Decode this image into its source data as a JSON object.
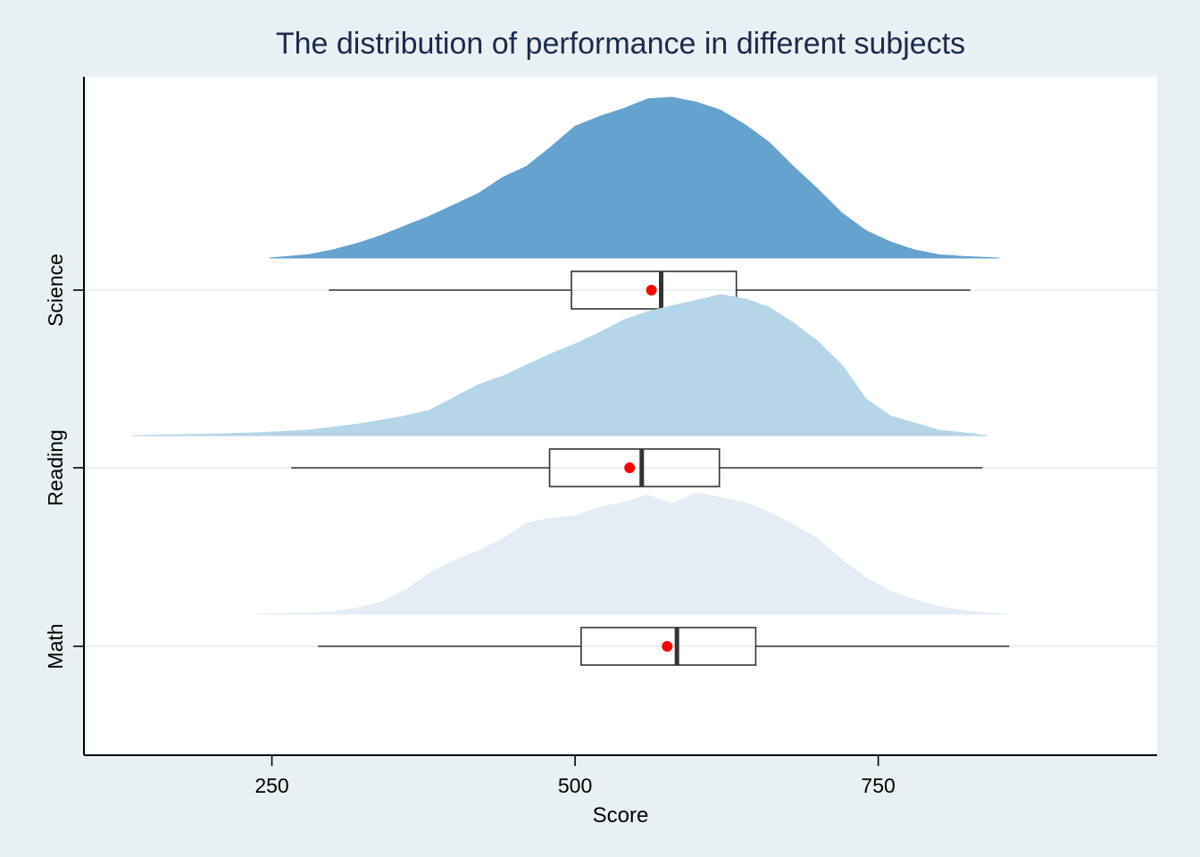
{
  "chart_data": {
    "type": "raincloud",
    "title": "The distribution of performance in different subjects",
    "xlabel": "Score",
    "ylabel": "",
    "xlim": [
      95,
      980
    ],
    "xticks": [
      250,
      500,
      750
    ],
    "grid": "horizontal",
    "legend": "none",
    "colors": {
      "background": "#e9f0f3",
      "plot_background": "#ffffff",
      "mean_marker": "#ff0000",
      "box_stroke": "#333333",
      "gridline": "#e6ecef"
    },
    "series": [
      {
        "name": "Math",
        "color": "#e4edf6",
        "density_x": [
          236,
          260,
          280,
          300,
          320,
          340,
          360,
          380,
          400,
          420,
          440,
          460,
          480,
          500,
          520,
          540,
          560,
          580,
          600,
          620,
          640,
          660,
          680,
          700,
          720,
          740,
          760,
          780,
          800,
          820,
          840,
          858
        ],
        "density_y": [
          0.0,
          0.005,
          0.01,
          0.02,
          0.05,
          0.1,
          0.2,
          0.34,
          0.44,
          0.52,
          0.62,
          0.75,
          0.79,
          0.81,
          0.88,
          0.92,
          0.98,
          0.91,
          1.0,
          0.96,
          0.92,
          0.84,
          0.74,
          0.62,
          0.45,
          0.3,
          0.19,
          0.12,
          0.06,
          0.03,
          0.01,
          0.0
        ],
        "box": {
          "whisker_low": 288,
          "q1": 505,
          "median": 584,
          "q3": 649,
          "whisker_high": 858,
          "mean": 576
        }
      },
      {
        "name": "Reading",
        "color": "#b5d6e9",
        "density_x": [
          135,
          160,
          200,
          240,
          280,
          300,
          320,
          340,
          360,
          380,
          400,
          420,
          440,
          460,
          480,
          500,
          520,
          540,
          560,
          580,
          600,
          620,
          640,
          660,
          680,
          700,
          720,
          740,
          760,
          780,
          800,
          840
        ],
        "density_y": [
          0.0,
          0.005,
          0.01,
          0.02,
          0.04,
          0.06,
          0.08,
          0.11,
          0.14,
          0.18,
          0.27,
          0.36,
          0.42,
          0.5,
          0.58,
          0.65,
          0.73,
          0.82,
          0.88,
          0.92,
          0.96,
          1.0,
          0.97,
          0.91,
          0.8,
          0.67,
          0.5,
          0.26,
          0.14,
          0.09,
          0.04,
          0.0
        ],
        "box": {
          "whisker_low": 266,
          "q1": 479,
          "median": 555,
          "q3": 619,
          "whisker_high": 836,
          "mean": 545
        }
      },
      {
        "name": "Science",
        "color": "#65a2cd",
        "density_x": [
          248,
          280,
          300,
          320,
          340,
          360,
          380,
          400,
          420,
          440,
          460,
          480,
          500,
          520,
          540,
          560,
          580,
          600,
          620,
          640,
          660,
          680,
          700,
          720,
          740,
          760,
          780,
          800,
          820,
          850
        ],
        "density_y": [
          0.0,
          0.02,
          0.05,
          0.09,
          0.14,
          0.2,
          0.26,
          0.33,
          0.4,
          0.5,
          0.57,
          0.69,
          0.82,
          0.88,
          0.93,
          0.99,
          1.0,
          0.97,
          0.92,
          0.83,
          0.72,
          0.57,
          0.43,
          0.28,
          0.17,
          0.1,
          0.05,
          0.02,
          0.01,
          0.0
        ],
        "box": {
          "whisker_low": 297,
          "q1": 497,
          "median": 571,
          "q3": 633,
          "whisker_high": 826,
          "mean": 563
        }
      }
    ]
  }
}
